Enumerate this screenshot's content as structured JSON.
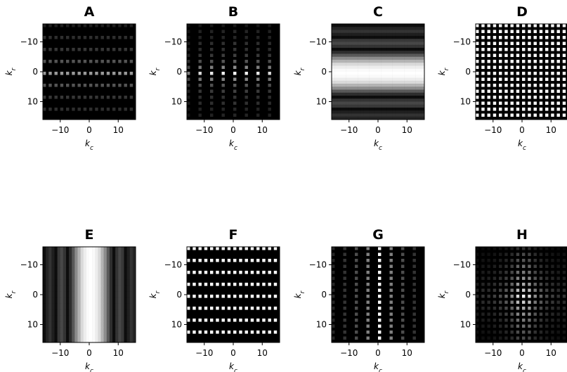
{
  "figure": {
    "x_label_text": "k",
    "x_label_sub": "c",
    "y_label_text": "k",
    "y_label_sub": "r"
  },
  "chart_data": [
    {
      "type": "heatmap",
      "title": "A",
      "xlabel": "k_c",
      "ylabel": "k_r",
      "xlim": [
        -16,
        16
      ],
      "ylim": [
        16,
        -16
      ],
      "xticks": [
        -10,
        0,
        10
      ],
      "yticks": [
        -10,
        0,
        10
      ],
      "tick_labels_x": [
        "−10",
        "0",
        "10"
      ],
      "tick_labels_y": [
        "−10",
        "0",
        "10"
      ],
      "colormap": "gray",
      "grid_size": 32,
      "pattern": {
        "kind": "dots",
        "col_period": 2,
        "col_phase": 0,
        "row_period": 4,
        "row_phase": 0,
        "col_profile": [
          0.6,
          0.6
        ],
        "row_profile": [
          1.0,
          0.55,
          0.35,
          0.3,
          0.2
        ]
      }
    },
    {
      "type": "heatmap",
      "title": "B",
      "xlabel": "k_c",
      "ylabel": "k_r",
      "xlim": [
        -16,
        16
      ],
      "ylim": [
        16,
        -16
      ],
      "xticks": [
        -10,
        0,
        10
      ],
      "yticks": [
        -10,
        0,
        10
      ],
      "tick_labels_x": [
        "−10",
        "0",
        "10"
      ],
      "tick_labels_y": [
        "−10",
        "0",
        "10"
      ],
      "colormap": "gray",
      "grid_size": 32,
      "pattern": {
        "kind": "dots",
        "col_period": 4,
        "col_phase": 0,
        "row_period": 2,
        "row_phase": 0,
        "col_profile": [
          1.0,
          0.95,
          0.9,
          0.85,
          0.5
        ],
        "row_profile": [
          1.0,
          0.55,
          0.35,
          0.25,
          0.2,
          0.2,
          0.15,
          0.15,
          0.1
        ]
      }
    },
    {
      "type": "heatmap",
      "title": "C",
      "xlabel": "k_c",
      "ylabel": "k_r",
      "xlim": [
        -16,
        16
      ],
      "ylim": [
        16,
        -16
      ],
      "xticks": [
        -10,
        0,
        10
      ],
      "yticks": [
        -10,
        0,
        10
      ],
      "tick_labels_x": [
        "−10",
        "0",
        "10"
      ],
      "tick_labels_y": [
        "−10",
        "0",
        "10"
      ],
      "colormap": "gray",
      "grid_size": 32,
      "pattern": {
        "kind": "rows",
        "profile": [
          1.0,
          0.98,
          0.93,
          0.85,
          0.7,
          0.55,
          0.35,
          0.18,
          0.05,
          0.2,
          0.28,
          0.22,
          0.05,
          0.12,
          0.2,
          0.14,
          0.05
        ]
      }
    },
    {
      "type": "heatmap",
      "title": "D",
      "xlabel": "k_c",
      "ylabel": "k_r",
      "xlim": [
        -16,
        16
      ],
      "ylim": [
        16,
        -16
      ],
      "xticks": [
        -10,
        0,
        10
      ],
      "yticks": [
        -10,
        0,
        10
      ],
      "tick_labels_x": [
        "−10",
        "0",
        "10"
      ],
      "tick_labels_y": [
        "−10",
        "0",
        "10"
      ],
      "colormap": "gray",
      "grid_size": 32,
      "pattern": {
        "kind": "dots",
        "col_period": 2,
        "col_phase": 0,
        "row_period": 2,
        "row_phase": 0,
        "col_profile": [
          1.0
        ],
        "row_profile": [
          1.0
        ]
      }
    },
    {
      "type": "heatmap",
      "title": "E",
      "xlabel": "k_c",
      "ylabel": "k_r",
      "xlim": [
        -16,
        16
      ],
      "ylim": [
        16,
        -16
      ],
      "xticks": [
        -10,
        0,
        10
      ],
      "yticks": [
        -10,
        0,
        10
      ],
      "tick_labels_x": [
        "−10",
        "0",
        "10"
      ],
      "tick_labels_y": [
        "−10",
        "0",
        "10"
      ],
      "colormap": "gray",
      "grid_size": 32,
      "pattern": {
        "kind": "cols",
        "profile": [
          1.0,
          0.98,
          0.93,
          0.85,
          0.7,
          0.55,
          0.35,
          0.18,
          0.05,
          0.2,
          0.28,
          0.22,
          0.05,
          0.12,
          0.2,
          0.14,
          0.05
        ]
      }
    },
    {
      "type": "heatmap",
      "title": "F",
      "xlabel": "k_c",
      "ylabel": "k_r",
      "xlim": [
        -16,
        16
      ],
      "ylim": [
        16,
        -16
      ],
      "xticks": [
        -10,
        0,
        10
      ],
      "yticks": [
        -10,
        0,
        10
      ],
      "tick_labels_x": [
        "−10",
        "0",
        "10"
      ],
      "tick_labels_y": [
        "−10",
        "0",
        "10"
      ],
      "colormap": "gray",
      "grid_size": 32,
      "pattern": {
        "kind": "dots",
        "col_period": 2,
        "col_phase": 0,
        "row_period": 4,
        "row_phase": 0,
        "col_profile": [
          1.0
        ],
        "row_profile": [
          1.0
        ]
      }
    },
    {
      "type": "heatmap",
      "title": "G",
      "xlabel": "k_c",
      "ylabel": "k_r",
      "xlim": [
        -16,
        16
      ],
      "ylim": [
        16,
        -16
      ],
      "xticks": [
        -10,
        0,
        10
      ],
      "yticks": [
        -10,
        0,
        10
      ],
      "tick_labels_x": [
        "−10",
        "0",
        "10"
      ],
      "tick_labels_y": [
        "−10",
        "0",
        "10"
      ],
      "colormap": "gray",
      "grid_size": 32,
      "pattern": {
        "kind": "dots",
        "col_period": 4,
        "col_phase": 0,
        "row_period": 2,
        "row_phase": 0,
        "col_profile": [
          1.0,
          0.5,
          0.3,
          0.2,
          0.15
        ],
        "row_profile": [
          1.0
        ]
      }
    },
    {
      "type": "heatmap",
      "title": "H",
      "xlabel": "k_c",
      "ylabel": "k_r",
      "xlim": [
        -16,
        16
      ],
      "ylim": [
        16,
        -16
      ],
      "xticks": [
        -10,
        0,
        10
      ],
      "yticks": [
        -10,
        0,
        10
      ],
      "tick_labels_x": [
        "−10",
        "0",
        "10"
      ],
      "tick_labels_y": [
        "−10",
        "0",
        "10"
      ],
      "colormap": "gray",
      "grid_size": 32,
      "pattern": {
        "kind": "dots",
        "col_period": 2,
        "col_phase": 0,
        "row_period": 2,
        "row_phase": 0,
        "col_profile": [
          0.95,
          0.85,
          0.55,
          0.4,
          0.3,
          0.25,
          0.2,
          0.2,
          0.15
        ],
        "row_profile": [
          1.0,
          0.85,
          0.7,
          0.6,
          0.5,
          0.45,
          0.35,
          0.3,
          0.2
        ]
      }
    }
  ]
}
